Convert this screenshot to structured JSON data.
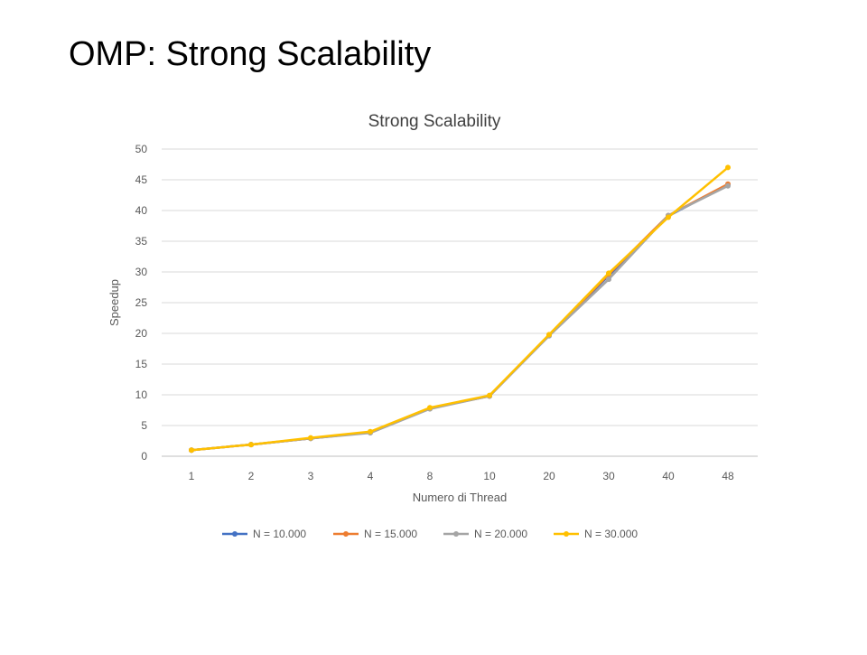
{
  "slide": {
    "title": "OMP: Strong Scalability"
  },
  "chart_data": {
    "type": "line",
    "title": "Strong Scalability",
    "xlabel": "Numero di Thread",
    "ylabel": "Speedup",
    "categories": [
      "1",
      "2",
      "3",
      "4",
      "8",
      "10",
      "20",
      "30",
      "40",
      "48"
    ],
    "ylim": [
      0,
      50
    ],
    "yticks": [
      0,
      5,
      10,
      15,
      20,
      25,
      30,
      35,
      40,
      45,
      50
    ],
    "grid": true,
    "legend_position": "bottom",
    "series": [
      {
        "name": "N = 10.000",
        "color": "#4472C4",
        "values": [
          1,
          1.9,
          2.9,
          3.9,
          7.8,
          9.8,
          19.7,
          29.4,
          39.1,
          44.2
        ]
      },
      {
        "name": "N = 15.000",
        "color": "#ED7D31",
        "values": [
          1,
          1.9,
          2.9,
          3.9,
          7.8,
          9.8,
          19.7,
          29.6,
          39.2,
          44.3
        ]
      },
      {
        "name": "N = 20.000",
        "color": "#A5A5A5",
        "values": [
          1,
          1.9,
          2.9,
          3.8,
          7.7,
          9.8,
          19.6,
          28.8,
          39.2,
          44.0
        ]
      },
      {
        "name": "N = 30.000",
        "color": "#FFC000",
        "values": [
          1,
          1.9,
          3.0,
          4.0,
          7.9,
          9.9,
          19.8,
          29.8,
          38.9,
          47.0
        ]
      }
    ]
  }
}
